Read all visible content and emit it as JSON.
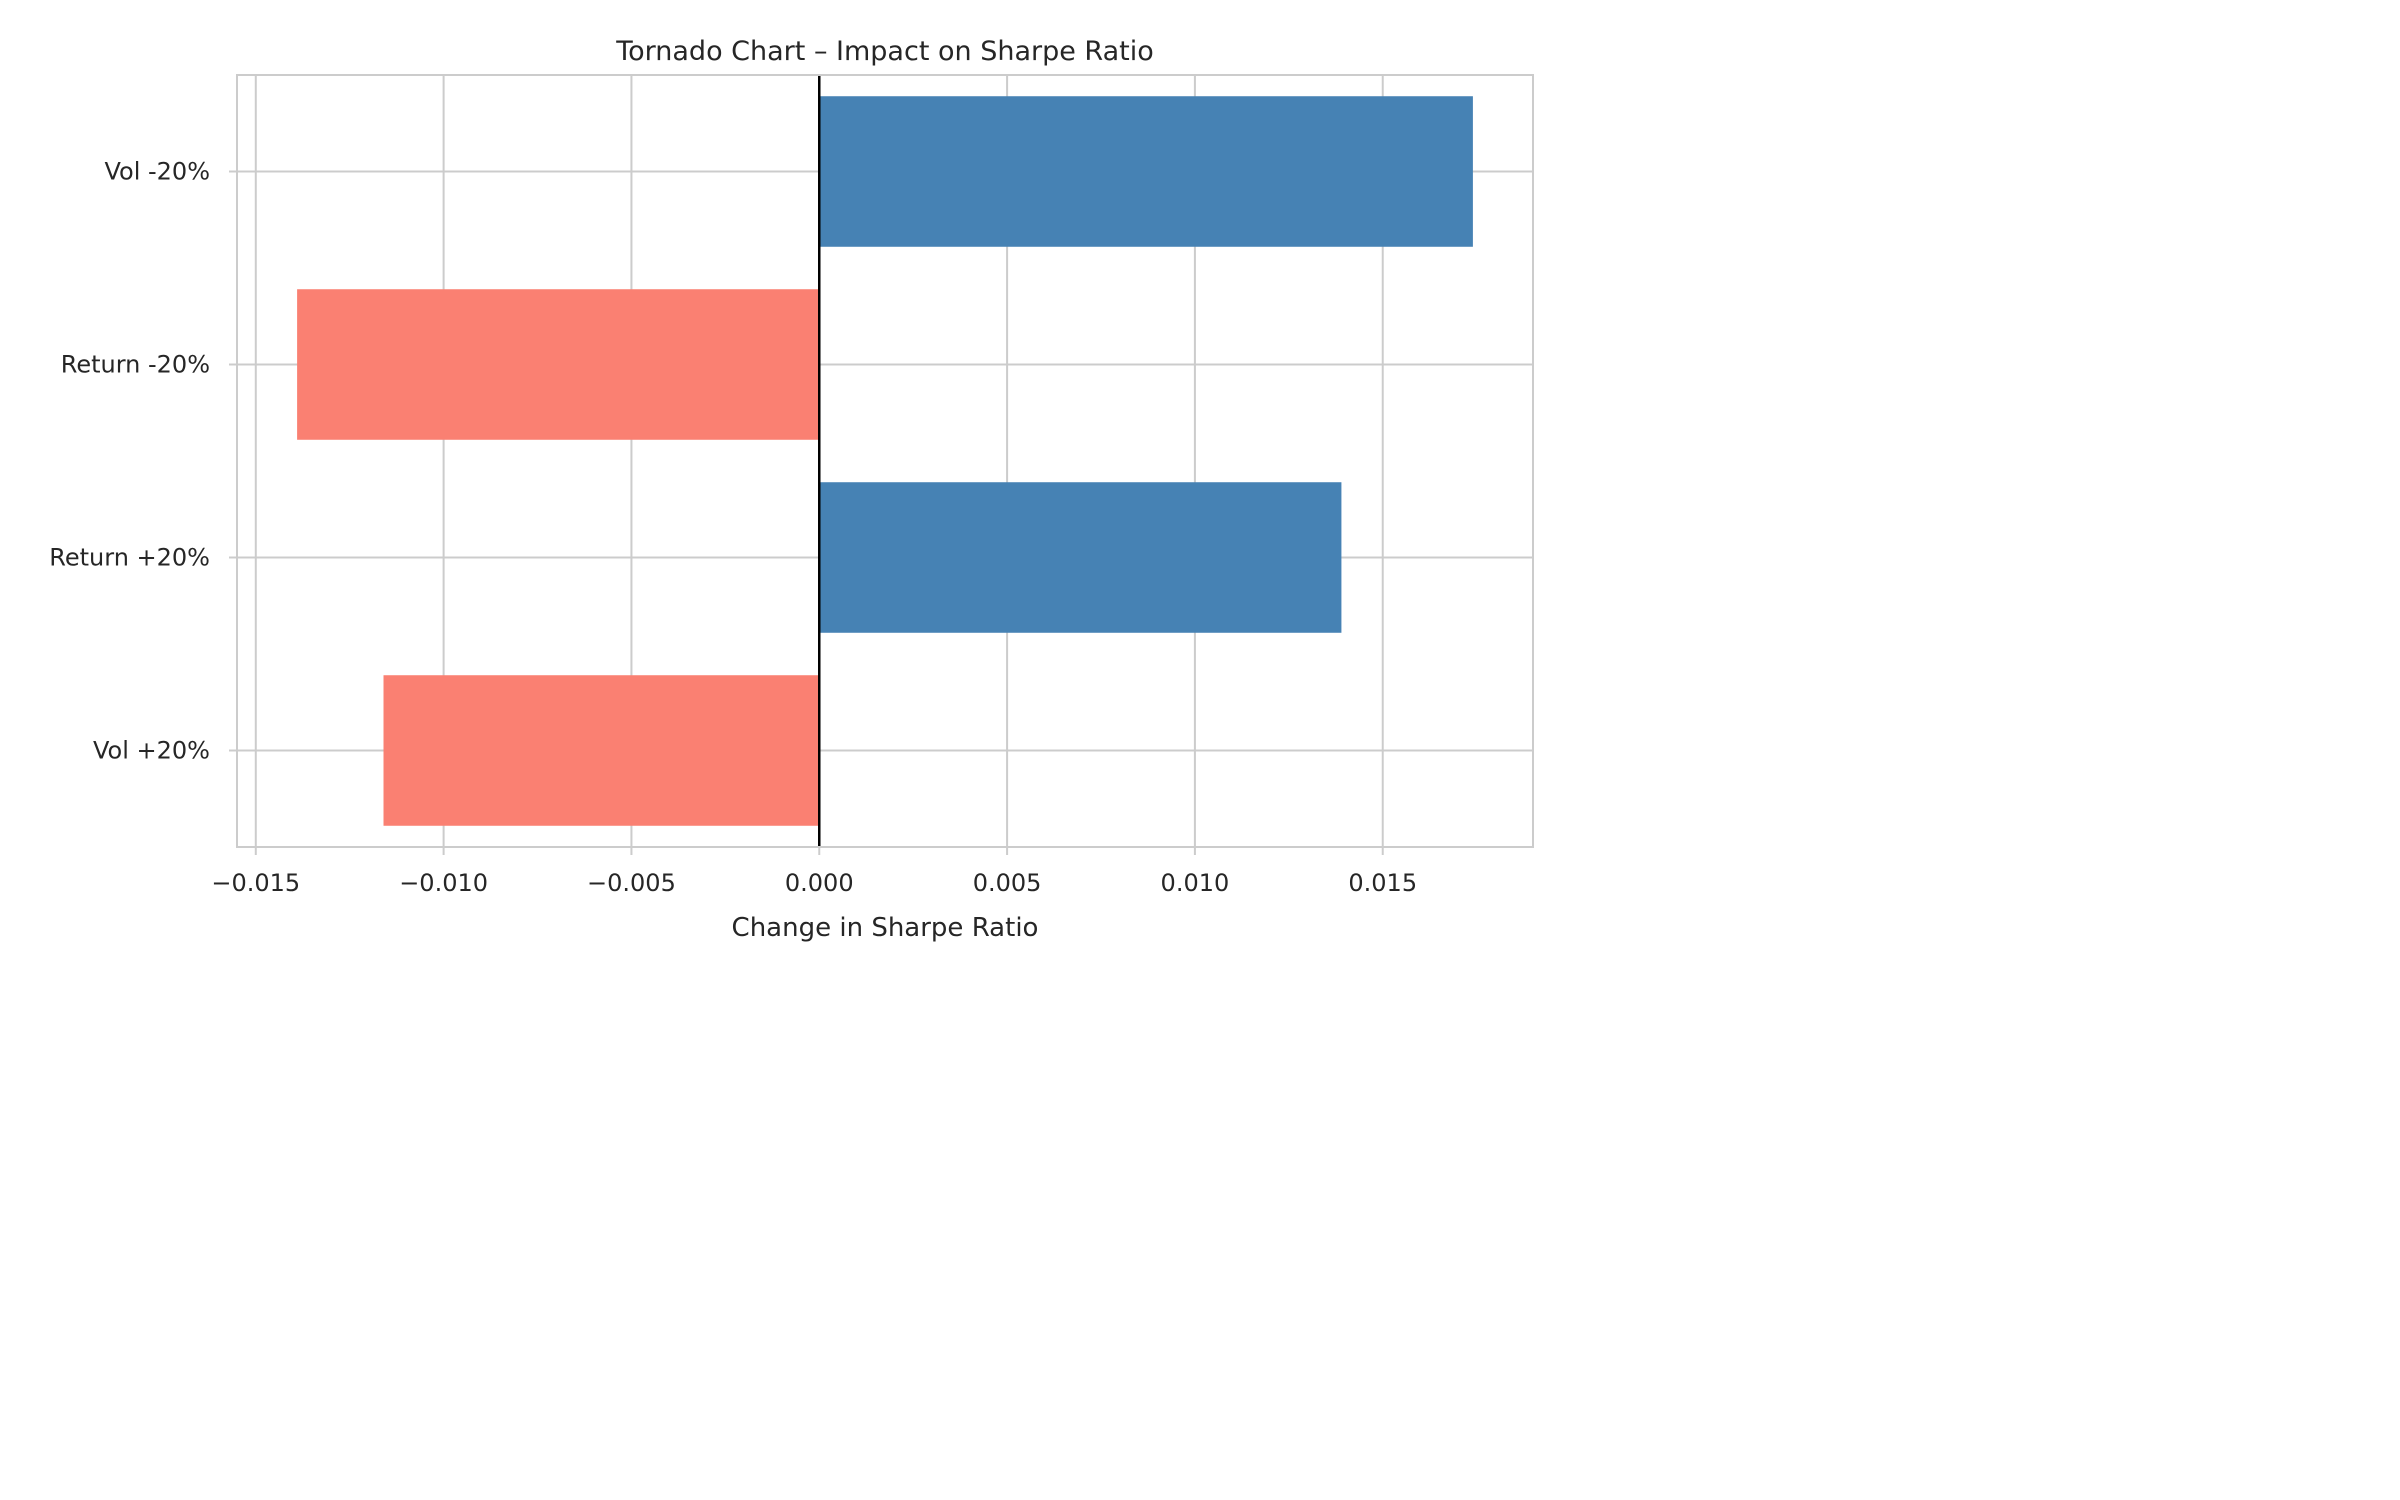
{
  "chart_data": {
    "type": "bar",
    "orientation": "horizontal",
    "title": "Tornado Chart – Impact on Sharpe Ratio",
    "xlabel": "Change in Sharpe Ratio",
    "ylabel": "",
    "categories": [
      "Vol -20%",
      "Return -20%",
      "Return +20%",
      "Vol +20%"
    ],
    "values": [
      0.0174,
      -0.0139,
      0.0139,
      -0.0116
    ],
    "xlim": [
      -0.0155,
      0.019
    ],
    "xticks": [
      -0.015,
      -0.01,
      -0.005,
      0.0,
      0.005,
      0.01,
      0.015
    ],
    "xtick_labels": [
      "−0.015",
      "−0.010",
      "−0.005",
      "0.000",
      "0.005",
      "0.010",
      "0.015"
    ],
    "grid": true,
    "legend": "none",
    "colors": {
      "positive": "#4682b4",
      "negative": "#fa8072",
      "zero_line": "#000000",
      "grid": "#cccccc"
    }
  }
}
